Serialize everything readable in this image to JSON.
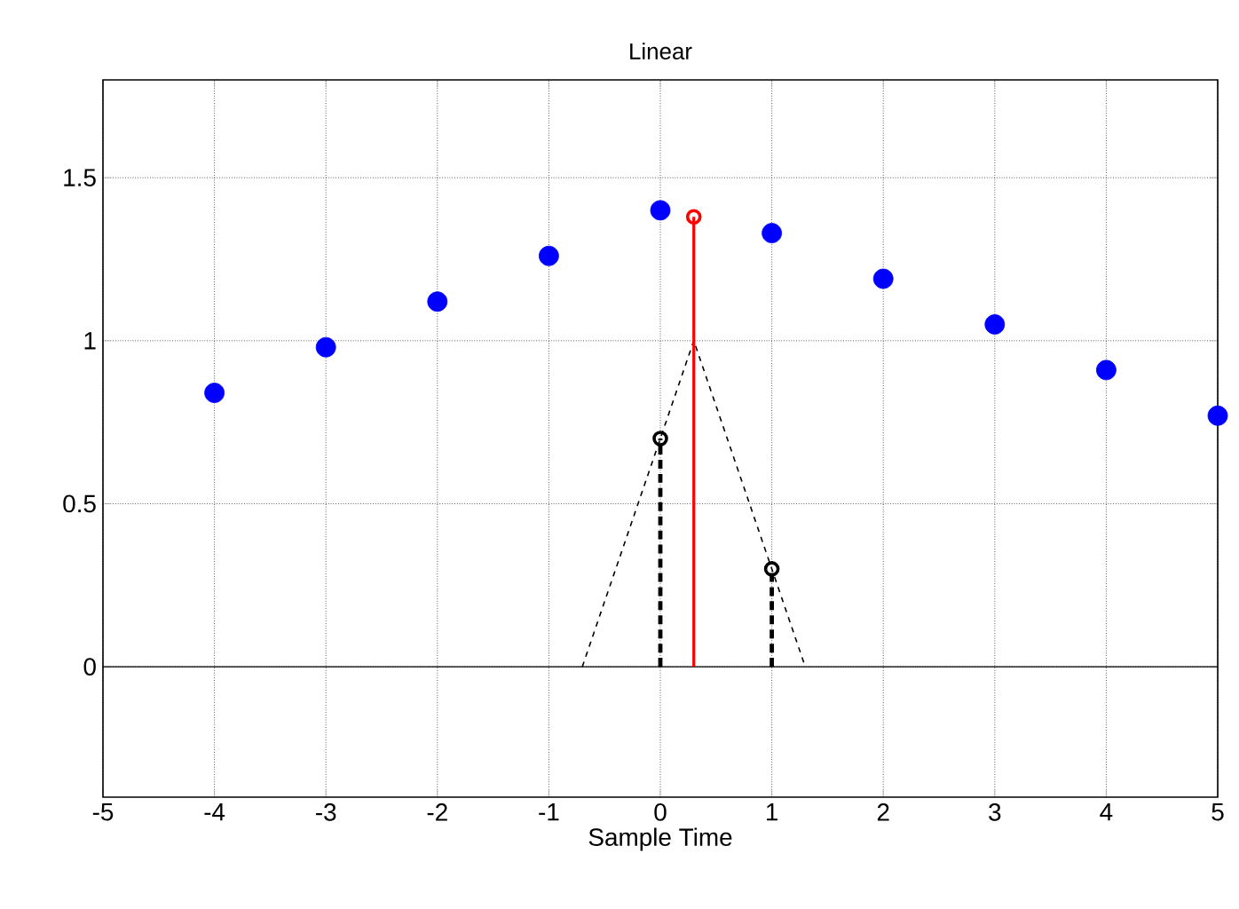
{
  "chart_data": {
    "type": "scatter",
    "title": "Linear",
    "xlabel": "Sample Time",
    "xlim": [
      -5,
      5
    ],
    "ylim": [
      -0.4,
      1.8
    ],
    "xticks": [
      -5,
      -4,
      -3,
      -2,
      -1,
      0,
      1,
      2,
      3,
      4,
      5
    ],
    "yticks": [
      0,
      0.5,
      1,
      1.5
    ],
    "grid": true,
    "ref_lines": [
      {
        "axis": "y",
        "value": 0,
        "color": "#000000",
        "line_style": "solid"
      }
    ],
    "series": [
      {
        "color": "#0000ff",
        "marker": "circle",
        "x": [
          -4,
          -3,
          -2,
          -1,
          0,
          1,
          2,
          3,
          4,
          5
        ],
        "values": [
          0.84,
          0.98,
          1.12,
          1.26,
          1.4,
          1.33,
          1.19,
          1.05,
          0.91,
          0.77
        ]
      },
      {
        "type": "line",
        "color": "#000000",
        "line_style": "dashed",
        "marker": "none",
        "x": [
          -0.7,
          0.3,
          1.3
        ],
        "values": [
          0,
          1,
          0
        ]
      },
      {
        "type": "lollipop",
        "color": "#000000",
        "line_style": "dashed",
        "marker": "circle",
        "x": [
          0,
          1
        ],
        "values": [
          0.7,
          0.3
        ]
      },
      {
        "type": "lollipop",
        "color": "#ff0000",
        "line_style": "solid",
        "marker": "circle",
        "x": [
          0.3
        ],
        "values": [
          1.38
        ]
      }
    ]
  }
}
